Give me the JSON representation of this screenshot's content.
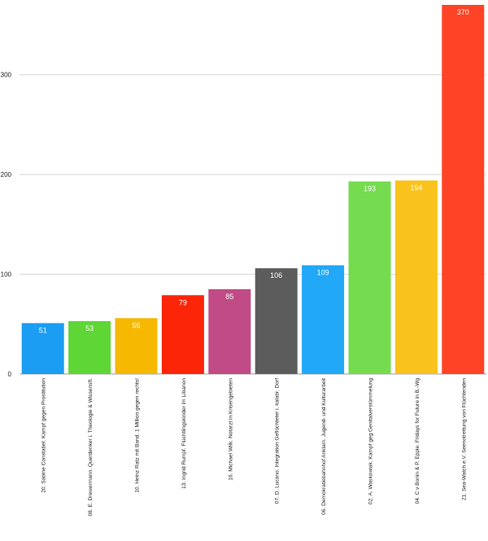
{
  "chart_data": {
    "type": "bar",
    "title": "",
    "xlabel": "",
    "ylabel": "",
    "ylim": [
      0,
      370
    ],
    "yticks": [
      0,
      100,
      200,
      300
    ],
    "grid": true,
    "legend": "none",
    "categories": [
      "20. Sabine Constabel. Kampf gegen Prostitution",
      "08. E. Drewermann. Querdenker i. Theologie & Wissensft.",
      "10. Heinz Ratz mit Band. 1 Million gegen rechts!",
      "13. Ingrid Rumpf. Flüchtlingskinder im Libanon",
      "16. Michael Wilk. Notarzt in Krisengebieten",
      "07. D. Lucano. Integration Geflüchteter i. kalabr. Dorf",
      "06. Demokratiebahnhof Anklam. Jugend- und Kulturarbeit",
      "02. A. Waskowiak. Kampf geg Genitalverstümmelung",
      "04. C v Bonin & P. Epple. Fridays for Future in B.-Wg",
      "21. Sea-Watch e.V. Seenotrettung von Flüchtenden"
    ],
    "values": [
      51,
      53,
      56,
      79,
      85,
      106,
      109,
      193,
      194,
      370
    ],
    "colors": [
      "#1a9df2",
      "#5ed636",
      "#f6b800",
      "#fd2508",
      "#c14b86",
      "#5c5c5c",
      "#21a8f7",
      "#74dc4e",
      "#fac21c",
      "#fe4326"
    ]
  }
}
